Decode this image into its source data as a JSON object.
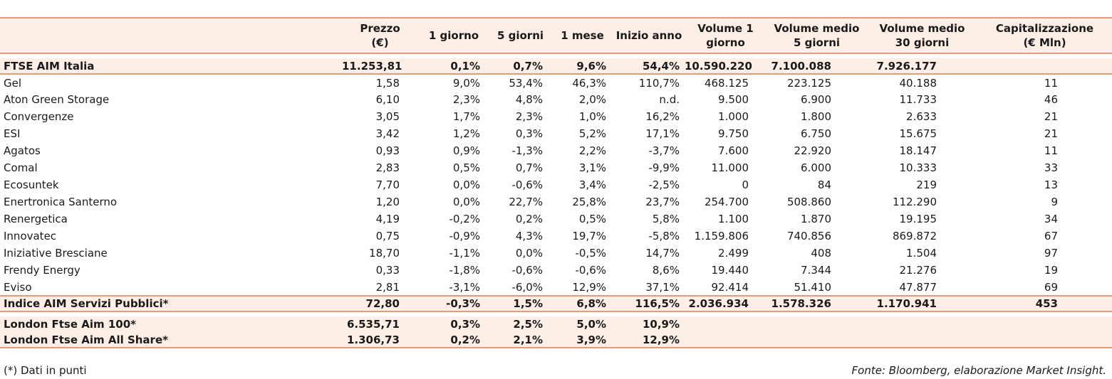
{
  "headers": [
    "Prezzo\n(€)",
    "1 giorno",
    "5 giorni",
    "1 mese",
    "Inizio anno",
    "Volume 1\ngiorno",
    "Volume medio\n5 giorni",
    "Volume medio\n30 giorni",
    "Capitalizzazione\n(€ Mln)"
  ],
  "index_top": {
    "name": "FTSE AIM Italia",
    "values": [
      "11.253,81",
      "0,1%",
      "0,7%",
      "9,6%",
      "54,4%",
      "10.590.220",
      "7.100.088",
      "7.926.177",
      ""
    ]
  },
  "rows": [
    {
      "name": "Gel",
      "values": [
        "1,58",
        "9,0%",
        "53,4%",
        "46,3%",
        "110,7%",
        "468.125",
        "223.125",
        "40.188",
        "11"
      ]
    },
    {
      "name": "Aton Green Storage",
      "values": [
        "6,10",
        "2,3%",
        "4,8%",
        "2,0%",
        "n.d.",
        "9.500",
        "6.900",
        "11.733",
        "46"
      ]
    },
    {
      "name": "Convergenze",
      "values": [
        "3,05",
        "1,7%",
        "2,3%",
        "1,0%",
        "16,2%",
        "1.000",
        "1.800",
        "2.633",
        "21"
      ]
    },
    {
      "name": "ESI",
      "values": [
        "3,42",
        "1,2%",
        "0,3%",
        "5,2%",
        "17,1%",
        "9.750",
        "6.750",
        "15.675",
        "21"
      ]
    },
    {
      "name": "Agatos",
      "values": [
        "0,93",
        "0,9%",
        "-1,3%",
        "2,2%",
        "-3,7%",
        "7.600",
        "22.920",
        "18.147",
        "11"
      ]
    },
    {
      "name": "Comal",
      "values": [
        "2,83",
        "0,5%",
        "0,7%",
        "3,1%",
        "-9,9%",
        "11.000",
        "6.000",
        "10.333",
        "33"
      ]
    },
    {
      "name": "Ecosuntek",
      "values": [
        "7,70",
        "0,0%",
        "-0,6%",
        "3,4%",
        "-2,5%",
        "0",
        "84",
        "219",
        "13"
      ]
    },
    {
      "name": "Enertronica Santerno",
      "values": [
        "1,20",
        "0,0%",
        "22,7%",
        "25,8%",
        "23,7%",
        "254.700",
        "508.860",
        "112.290",
        "9"
      ]
    },
    {
      "name": "Renergetica",
      "values": [
        "4,19",
        "-0,2%",
        "0,2%",
        "0,5%",
        "5,8%",
        "1.100",
        "1.870",
        "19.195",
        "34"
      ]
    },
    {
      "name": "Innovatec",
      "values": [
        "0,75",
        "-0,9%",
        "4,3%",
        "19,7%",
        "-5,8%",
        "1.159.806",
        "740.856",
        "869.872",
        "67"
      ]
    },
    {
      "name": "Iniziative Bresciane",
      "values": [
        "18,70",
        "-1,1%",
        "0,0%",
        "-0,5%",
        "14,7%",
        "2.499",
        "408",
        "1.504",
        "97"
      ]
    },
    {
      "name": "Frendy Energy",
      "values": [
        "0,33",
        "-1,8%",
        "-0,6%",
        "-0,6%",
        "8,6%",
        "19.440",
        "7.344",
        "21.276",
        "19"
      ]
    },
    {
      "name": "Eviso",
      "values": [
        "2,81",
        "-3,1%",
        "-6,0%",
        "12,9%",
        "37,1%",
        "92.414",
        "51.410",
        "47.877",
        "69"
      ]
    }
  ],
  "index_sector": {
    "name": "Indice AIM Servizi Pubblici*",
    "values": [
      "72,80",
      "-0,3%",
      "1,5%",
      "6,8%",
      "116,5%",
      "2.036.934",
      "1.578.326",
      "1.170.941",
      "453"
    ]
  },
  "london": [
    {
      "name": "London Ftse Aim 100*",
      "values": [
        "6.535,71",
        "0,3%",
        "2,5%",
        "5,0%",
        "10,9%",
        "",
        "",
        "",
        ""
      ]
    },
    {
      "name": "London Ftse Aim All Share*",
      "values": [
        "1.306,73",
        "0,2%",
        "2,1%",
        "3,9%",
        "12,9%",
        "",
        "",
        "",
        ""
      ]
    }
  ],
  "footer": {
    "note": "(*) Dati in punti",
    "source": "Fonte: Bloomberg, elaborazione Market Insight."
  }
}
